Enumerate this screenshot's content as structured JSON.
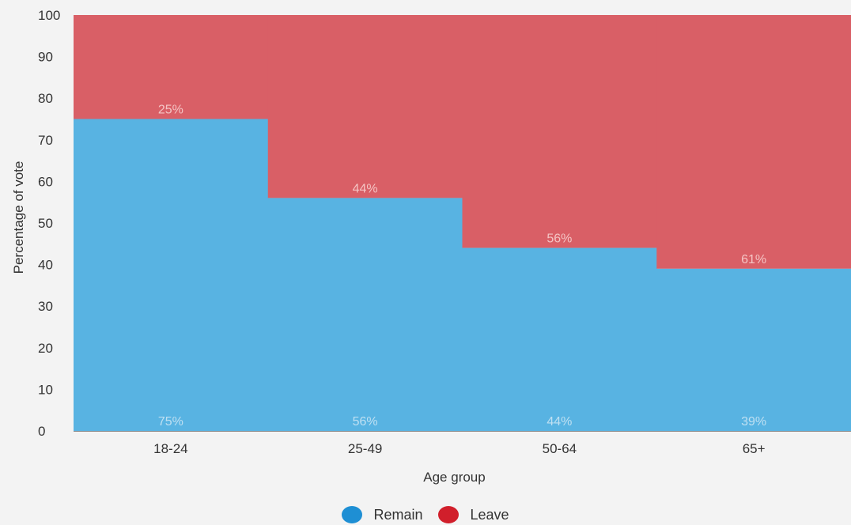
{
  "chart_data": {
    "type": "bar",
    "categories": [
      "18-24",
      "25-49",
      "50-64",
      "65+"
    ],
    "series": [
      {
        "name": "Remain",
        "values": [
          75,
          56,
          44,
          39
        ],
        "labels": [
          "75%",
          "56%",
          "44%",
          "39%"
        ],
        "color": "#58b3e2"
      },
      {
        "name": "Leave",
        "values": [
          25,
          44,
          56,
          61
        ],
        "labels": [
          "25%",
          "44%",
          "56%",
          "61%"
        ],
        "color": "#d95f66"
      }
    ],
    "stacked": true,
    "xlabel": "Age group",
    "ylabel": "Percentage of vote",
    "ylim": [
      0,
      100
    ],
    "yticks": [
      0,
      10,
      20,
      30,
      40,
      50,
      60,
      70,
      80,
      90,
      100
    ],
    "grid": false,
    "legend_position": "bottom-center",
    "legend": {
      "remain_label": "Remain",
      "leave_label": "Leave",
      "remain_color": "#1e8fd4",
      "leave_color": "#d11f2b"
    }
  }
}
